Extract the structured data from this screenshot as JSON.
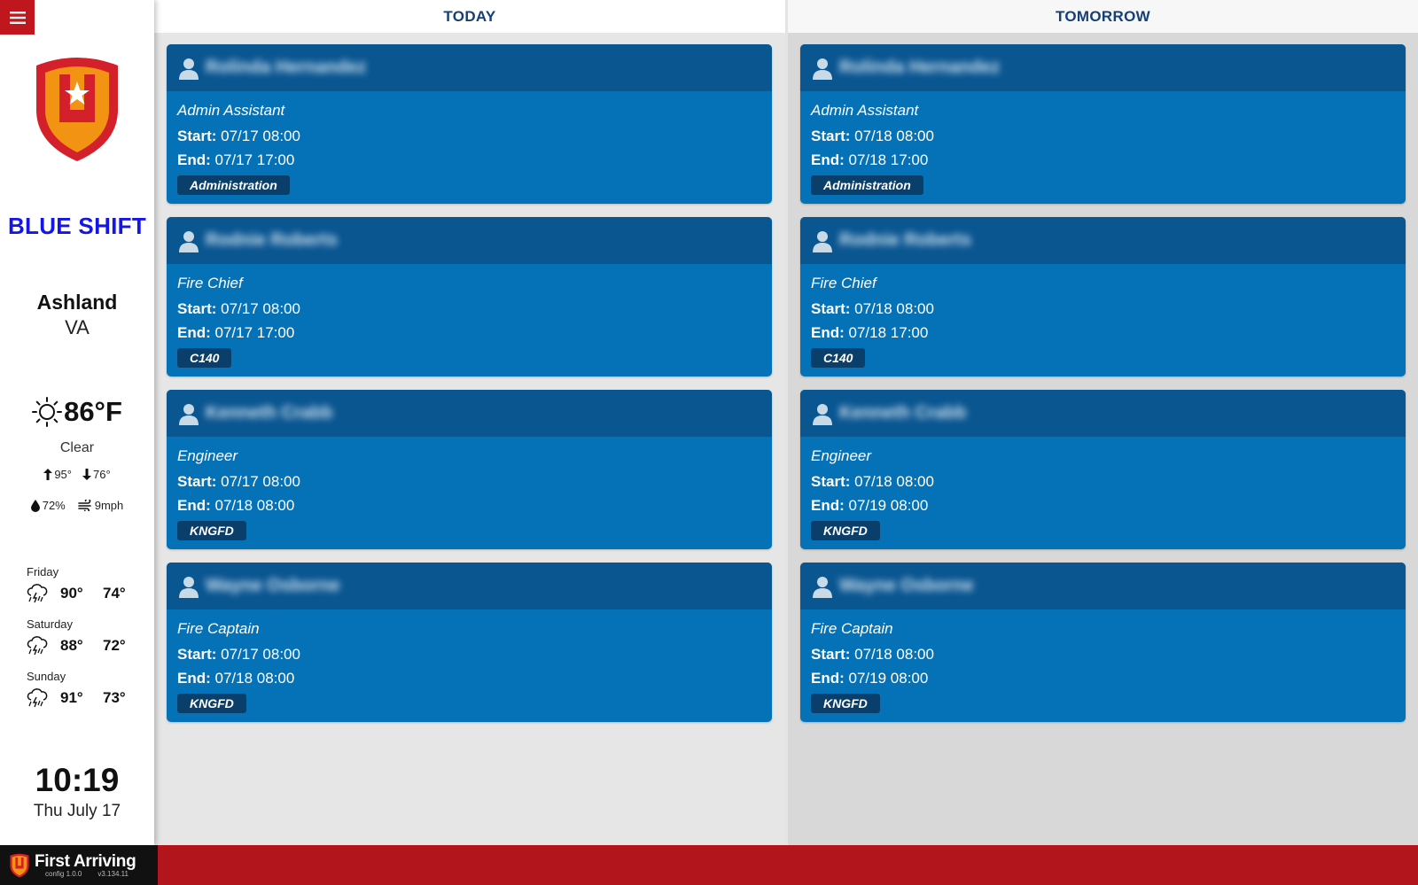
{
  "sidebar": {
    "shift_name": "BLUE SHIFT",
    "city": "Ashland",
    "state": "VA",
    "weather": {
      "temp": "86°F",
      "condition": "Clear",
      "high": "95°",
      "low": "76°",
      "humidity": "72%",
      "wind": "9mph",
      "icon": "sun-icon"
    },
    "forecast": [
      {
        "day": "Friday",
        "high": "90°",
        "low": "74°",
        "icon": "thunderstorm-icon"
      },
      {
        "day": "Saturday",
        "high": "88°",
        "low": "72°",
        "icon": "thunderstorm-icon"
      },
      {
        "day": "Sunday",
        "high": "91°",
        "low": "73°",
        "icon": "thunderstorm-icon"
      }
    ],
    "clock": "10:19",
    "date": "Thu July 17"
  },
  "today": {
    "title": "TODAY",
    "cards": [
      {
        "name": "Rolinda Hernandez",
        "role": "Admin Assistant",
        "start": "07/17 08:00",
        "end": "07/17 17:00",
        "tag": "Administration"
      },
      {
        "name": "Rodnie Roberts",
        "role": "Fire Chief",
        "start": "07/17 08:00",
        "end": "07/17 17:00",
        "tag": "C140"
      },
      {
        "name": "Kenneth Crabb",
        "role": "Engineer",
        "start": "07/17 08:00",
        "end": "07/18 08:00",
        "tag": "KNGFD"
      },
      {
        "name": "Wayne Osborne",
        "role": "Fire Captain",
        "start": "07/17 08:00",
        "end": "07/18 08:00",
        "tag": "KNGFD"
      }
    ]
  },
  "tomorrow": {
    "title": "TOMORROW",
    "cards": [
      {
        "name": "Rolinda Hernandez",
        "role": "Admin Assistant",
        "start": "07/18 08:00",
        "end": "07/18 17:00",
        "tag": "Administration"
      },
      {
        "name": "Rodnie Roberts",
        "role": "Fire Chief",
        "start": "07/18 08:00",
        "end": "07/18 17:00",
        "tag": "C140"
      },
      {
        "name": "Kenneth Crabb",
        "role": "Engineer",
        "start": "07/18 08:00",
        "end": "07/19 08:00",
        "tag": "KNGFD"
      },
      {
        "name": "Wayne Osborne",
        "role": "Fire Captain",
        "start": "07/18 08:00",
        "end": "07/19 08:00",
        "tag": "KNGFD"
      }
    ]
  },
  "labels": {
    "start": "Start:",
    "end": "End:"
  },
  "footer": {
    "brand": "First Arriving",
    "config_version": "config 1.0.0",
    "app_version": "v3.134.11"
  },
  "colors": {
    "accent_red": "#c0171f",
    "shift_blue": "#1515e6",
    "card_blue": "#0572b7",
    "card_head": "#0a5691",
    "tag_bg": "#0a3f6b",
    "header_text": "#163f76"
  }
}
